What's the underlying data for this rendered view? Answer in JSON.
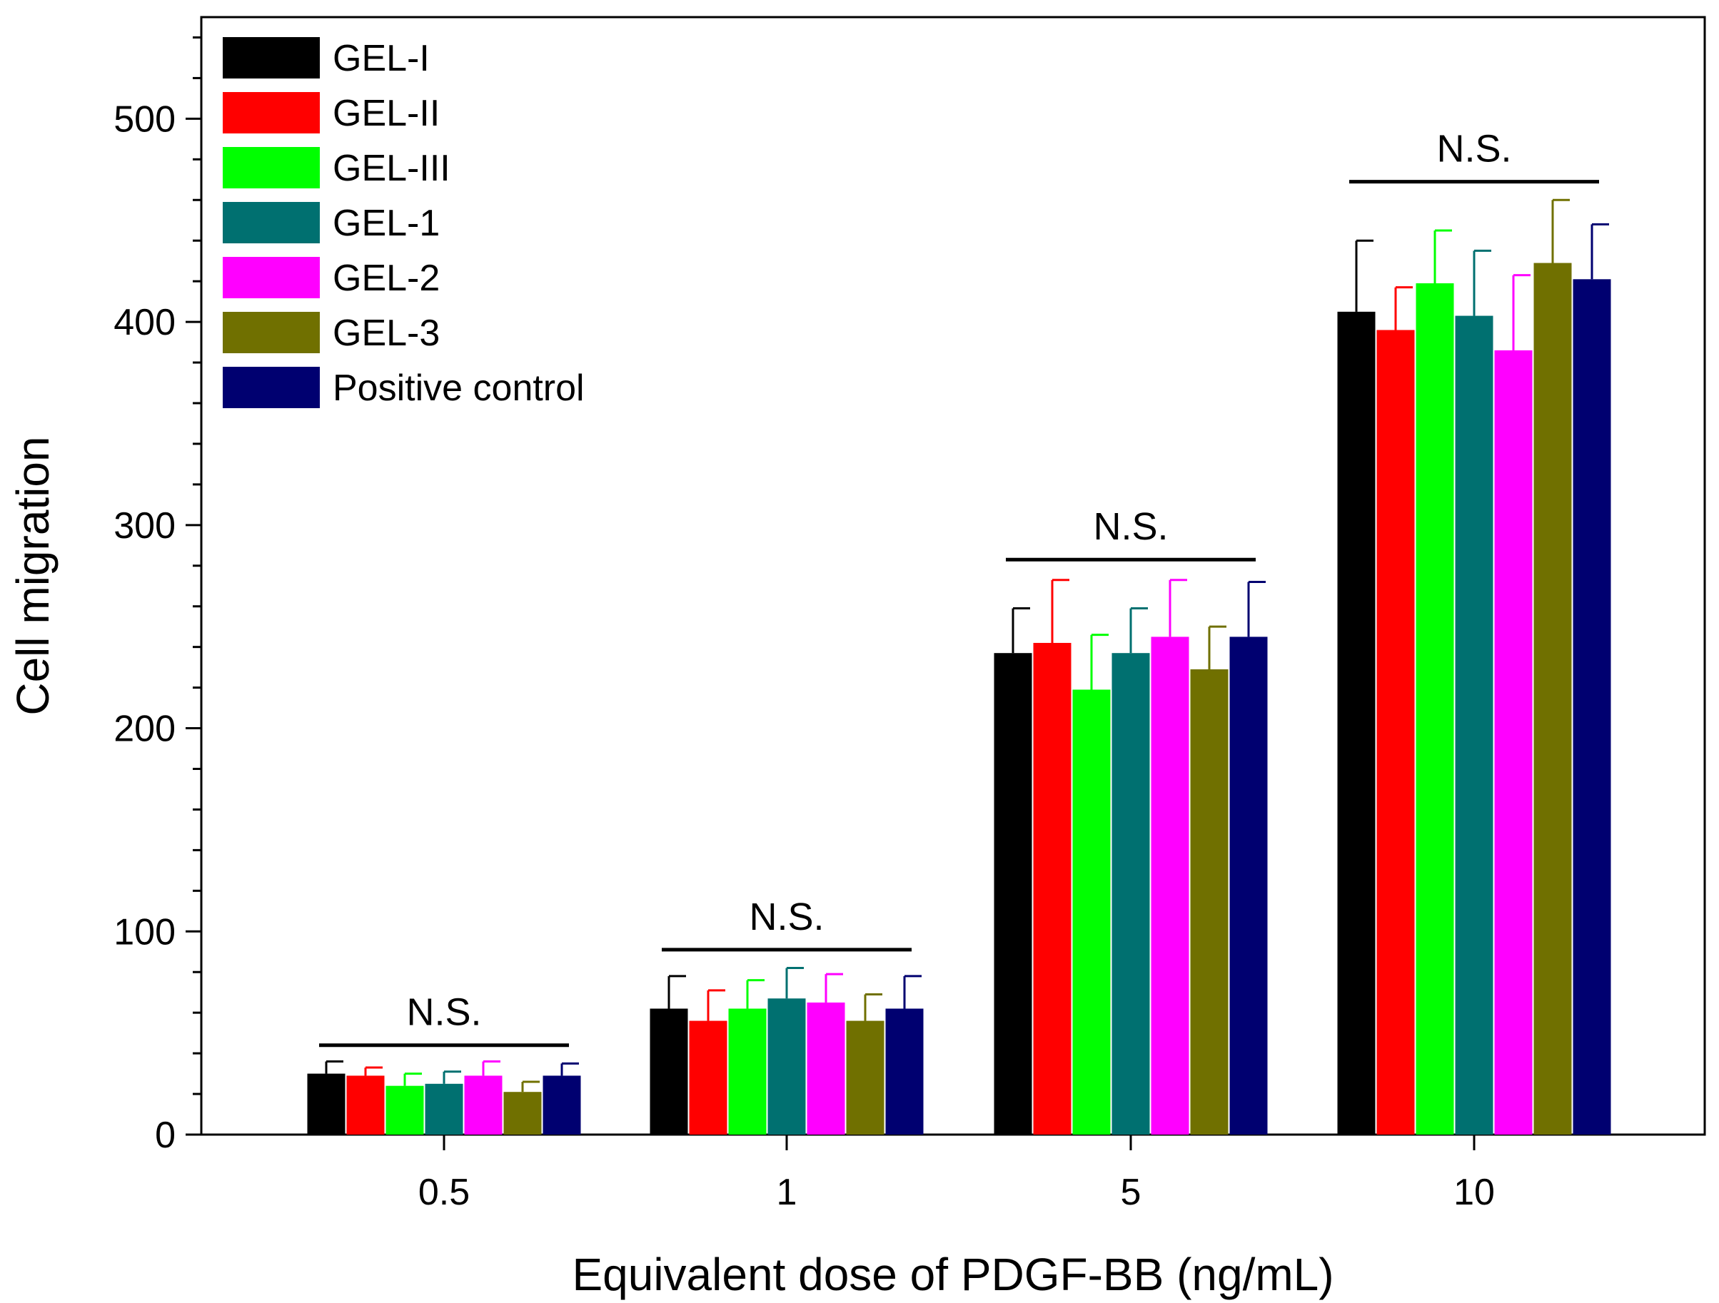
{
  "chart_data": {
    "type": "bar",
    "title": "",
    "xlabel": "Equivalent dose of PDGF-BB (ng/mL)",
    "ylabel": "Cell migration",
    "ylim": [
      0,
      550
    ],
    "yticks": [
      0,
      100,
      200,
      300,
      400,
      500
    ],
    "y_minor_step": 20,
    "categories": [
      "0.5",
      "1",
      "5",
      "10"
    ],
    "legend_position": "top-left",
    "series": [
      {
        "name": "GEL-I",
        "color": "#000000",
        "values": [
          30,
          62,
          237,
          405
        ],
        "errors": [
          6,
          16,
          22,
          35
        ]
      },
      {
        "name": "GEL-II",
        "color": "#ff0000",
        "values": [
          29,
          56,
          242,
          396
        ],
        "errors": [
          4,
          15,
          31,
          21
        ]
      },
      {
        "name": "GEL-III",
        "color": "#00ff00",
        "values": [
          24,
          62,
          219,
          419
        ],
        "errors": [
          6,
          14,
          27,
          26
        ]
      },
      {
        "name": "GEL-1",
        "color": "#007070",
        "values": [
          25,
          67,
          237,
          403
        ],
        "errors": [
          6,
          15,
          22,
          32
        ]
      },
      {
        "name": "GEL-2",
        "color": "#ff00ff",
        "values": [
          29,
          65,
          245,
          386
        ],
        "errors": [
          7,
          14,
          28,
          37
        ]
      },
      {
        "name": "GEL-3",
        "color": "#707000",
        "values": [
          21,
          56,
          229,
          429
        ],
        "errors": [
          5,
          13,
          21,
          31
        ]
      },
      {
        "name": "Positive control",
        "color": "#000070",
        "values": [
          29,
          62,
          245,
          421
        ],
        "errors": [
          6,
          16,
          27,
          27
        ]
      }
    ],
    "annotations": [
      {
        "category": "0.5",
        "text": "N.S.",
        "bracket_y": 44
      },
      {
        "category": "1",
        "text": "N.S.",
        "bracket_y": 91
      },
      {
        "category": "5",
        "text": "N.S.",
        "bracket_y": 283
      },
      {
        "category": "10",
        "text": "N.S.",
        "bracket_y": 469
      }
    ]
  }
}
